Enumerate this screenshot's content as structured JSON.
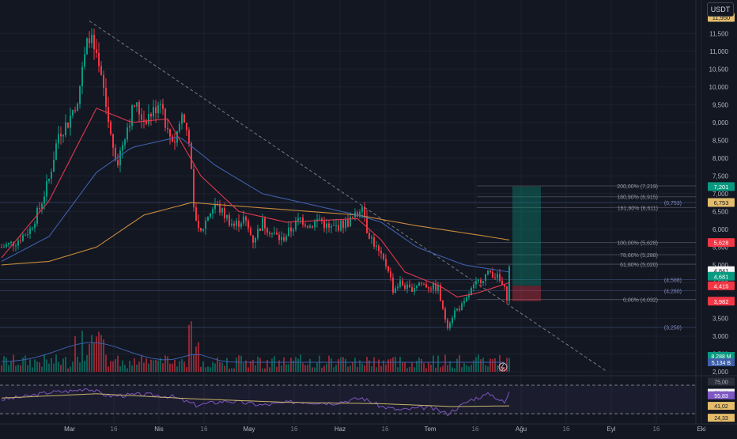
{
  "header": {
    "currency_label": "USDT"
  },
  "colors": {
    "background": "#131722",
    "grid": "#1e222d",
    "up": "#089981",
    "down": "#f23645",
    "ma_fast": "#e0384e",
    "ma_mid": "#3d5fa8",
    "ma_slow": "#c88a3c",
    "rsi_line": "#7e57c2",
    "rsi_ma": "#c8b46a"
  },
  "chart_data": [
    {
      "type": "candlestick",
      "ylim": [
        2000,
        12000
      ],
      "y_ticks": [
        "2,000",
        "2,500",
        "3,000",
        "3,500",
        "4,000",
        "4,500",
        "5,000",
        "5,500",
        "6,000",
        "6,500",
        "7,000",
        "7,500",
        "8,000",
        "8,500",
        "9,000",
        "9,500",
        "10,000",
        "10,500",
        "11,000",
        "11,500"
      ],
      "x_ticks": [
        "Mar",
        "16",
        "Nis",
        "16",
        "May",
        "16",
        "Haz",
        "16",
        "Tem",
        "16",
        "Ağu",
        "16",
        "Eyl",
        "16",
        "Eki"
      ],
      "price_path": [
        {
          "day": 0,
          "price": 5500
        },
        {
          "day": 6,
          "price": 5650
        },
        {
          "day": 12,
          "price": 6000
        },
        {
          "day": 16,
          "price": 6600
        },
        {
          "day": 20,
          "price": 7400
        },
        {
          "day": 24,
          "price": 8700
        },
        {
          "day": 28,
          "price": 9000
        },
        {
          "day": 32,
          "price": 9700
        },
        {
          "day": 35,
          "price": 10800
        },
        {
          "day": 37,
          "price": 11500
        },
        {
          "day": 40,
          "price": 10700
        },
        {
          "day": 43,
          "price": 9900
        },
        {
          "day": 46,
          "price": 8600
        },
        {
          "day": 49,
          "price": 7900
        },
        {
          "day": 52,
          "price": 8700
        },
        {
          "day": 56,
          "price": 9500
        },
        {
          "day": 60,
          "price": 9100
        },
        {
          "day": 64,
          "price": 9300
        },
        {
          "day": 67,
          "price": 9700
        },
        {
          "day": 70,
          "price": 8700
        },
        {
          "day": 73,
          "price": 8500
        },
        {
          "day": 76,
          "price": 9200
        },
        {
          "day": 79,
          "price": 8600
        },
        {
          "day": 81,
          "price": 6500
        },
        {
          "day": 84,
          "price": 5900
        },
        {
          "day": 87,
          "price": 6400
        },
        {
          "day": 90,
          "price": 6700
        },
        {
          "day": 94,
          "price": 6400
        },
        {
          "day": 98,
          "price": 6100
        },
        {
          "day": 102,
          "price": 6300
        },
        {
          "day": 106,
          "price": 5700
        },
        {
          "day": 110,
          "price": 6200
        },
        {
          "day": 114,
          "price": 5900
        },
        {
          "day": 118,
          "price": 5700
        },
        {
          "day": 122,
          "price": 6000
        },
        {
          "day": 126,
          "price": 6300
        },
        {
          "day": 130,
          "price": 6100
        },
        {
          "day": 134,
          "price": 6300
        },
        {
          "day": 138,
          "price": 6000
        },
        {
          "day": 142,
          "price": 6100
        },
        {
          "day": 146,
          "price": 6200
        },
        {
          "day": 150,
          "price": 6400
        },
        {
          "day": 152,
          "price": 6800
        },
        {
          "day": 154,
          "price": 6000
        },
        {
          "day": 157,
          "price": 5600
        },
        {
          "day": 160,
          "price": 5200
        },
        {
          "day": 163,
          "price": 4900
        },
        {
          "day": 165,
          "price": 4300
        },
        {
          "day": 168,
          "price": 4500
        },
        {
          "day": 172,
          "price": 4300
        },
        {
          "day": 176,
          "price": 4500
        },
        {
          "day": 180,
          "price": 4400
        },
        {
          "day": 184,
          "price": 4350
        },
        {
          "day": 186,
          "price": 3700
        },
        {
          "day": 188,
          "price": 3300
        },
        {
          "day": 191,
          "price": 3700
        },
        {
          "day": 195,
          "price": 3900
        },
        {
          "day": 198,
          "price": 4300
        },
        {
          "day": 202,
          "price": 4600
        },
        {
          "day": 206,
          "price": 4800
        },
        {
          "day": 209,
          "price": 4650
        },
        {
          "day": 212,
          "price": 4300
        },
        {
          "day": 213,
          "price": 4100
        },
        {
          "day": 214,
          "price": 4900
        }
      ],
      "moving_averages": {
        "fast": [
          {
            "day": 0,
            "price": 5200
          },
          {
            "day": 20,
            "price": 6800
          },
          {
            "day": 40,
            "price": 9400
          },
          {
            "day": 55,
            "price": 9000
          },
          {
            "day": 70,
            "price": 9100
          },
          {
            "day": 84,
            "price": 7500
          },
          {
            "day": 100,
            "price": 6500
          },
          {
            "day": 120,
            "price": 6200
          },
          {
            "day": 150,
            "price": 6300
          },
          {
            "day": 160,
            "price": 5700
          },
          {
            "day": 170,
            "price": 4800
          },
          {
            "day": 185,
            "price": 4400
          },
          {
            "day": 192,
            "price": 4100
          },
          {
            "day": 200,
            "price": 4200
          },
          {
            "day": 214,
            "price": 4500
          }
        ],
        "mid": [
          {
            "day": 0,
            "price": 5100
          },
          {
            "day": 20,
            "price": 5800
          },
          {
            "day": 40,
            "price": 7600
          },
          {
            "day": 55,
            "price": 8300
          },
          {
            "day": 75,
            "price": 8600
          },
          {
            "day": 90,
            "price": 7800
          },
          {
            "day": 110,
            "price": 7000
          },
          {
            "day": 130,
            "price": 6700
          },
          {
            "day": 150,
            "price": 6400
          },
          {
            "day": 160,
            "price": 6200
          },
          {
            "day": 175,
            "price": 5500
          },
          {
            "day": 195,
            "price": 5000
          },
          {
            "day": 214,
            "price": 4800
          }
        ],
        "slow": [
          {
            "day": 0,
            "price": 5000
          },
          {
            "day": 20,
            "price": 5100
          },
          {
            "day": 40,
            "price": 5500
          },
          {
            "day": 60,
            "price": 6400
          },
          {
            "day": 80,
            "price": 6750
          },
          {
            "day": 110,
            "price": 6600
          },
          {
            "day": 150,
            "price": 6400
          },
          {
            "day": 175,
            "price": 6100
          },
          {
            "day": 200,
            "price": 5850
          },
          {
            "day": 214,
            "price": 5700
          }
        ]
      },
      "trendline_label": "",
      "fib_levels": [
        {
          "label": "200,00% (7,219)",
          "price": 7219
        },
        {
          "label": "180,90% (6,915)",
          "price": 6915
        },
        {
          "label": "161,80% (6,611)",
          "price": 6611
        },
        {
          "label": "100,00% (5,628)",
          "price": 5628
        },
        {
          "label": "78,60% (5,288)",
          "price": 5288
        },
        {
          "label": "61,80% (5,020)",
          "price": 5020
        },
        {
          "label": "0,00% (4,032)",
          "price": 4032
        }
      ],
      "horizontal_levels": [
        {
          "label": "(6,753)",
          "price": 6753
        },
        {
          "label": "(4,588)",
          "price": 4588
        },
        {
          "label": "(4,280)",
          "price": 4280
        },
        {
          "label": "(3,250)",
          "price": 3250
        }
      ],
      "position": {
        "entry": 4415,
        "target": 7201,
        "stop": 3982
      },
      "price_tags": [
        {
          "label": "11,950",
          "price": 11950,
          "color": "#e4bc6a",
          "text_color": "#131722"
        },
        {
          "label": "7,201",
          "price": 7201,
          "color": "#089981",
          "text_color": "#ffffff"
        },
        {
          "label": "6,753",
          "price": 6753,
          "color": "#e4bc6a",
          "text_color": "#131722"
        },
        {
          "label": "5,628",
          "price": 5628,
          "color": "#f23645",
          "text_color": "#ffffff"
        },
        {
          "label": "4,841",
          "price": 4841,
          "color": "#f5f5f5",
          "text_color": "#131722"
        },
        {
          "label": "4,681",
          "price": 4681,
          "color": "#089981",
          "text_color": "#ffffff"
        },
        {
          "label": "4,415",
          "price": 4415,
          "color": "#f23645",
          "text_color": "#ffffff"
        },
        {
          "label": "3,982",
          "price": 3982,
          "color": "#f23645",
          "text_color": "#ffffff"
        }
      ],
      "volume_tags": [
        {
          "label": "8,288 M",
          "color": "#089981"
        },
        {
          "label": "5,134 B",
          "color": "#3d5fa8"
        }
      ]
    },
    {
      "type": "line",
      "name": "RSI",
      "ylim": [
        20,
        80
      ],
      "bands": [
        70,
        30
      ],
      "values_tags": [
        {
          "label": "75,00",
          "value": 75,
          "color": "#2a2e39",
          "text_color": "#b2b5be"
        },
        {
          "label": "59,40",
          "value": 59.4,
          "color": "#f5f5f5",
          "text_color": "#131722"
        },
        {
          "label": "55,83",
          "value": 55.83,
          "color": "#7e57c2",
          "text_color": "#ffffff"
        },
        {
          "label": "41,02",
          "value": 41.02,
          "color": "#e4bc6a",
          "text_color": "#131722"
        },
        {
          "label": "24,33",
          "value": 24.33,
          "color": "#e4bc6a",
          "text_color": "#131722"
        }
      ],
      "rsi_path": [
        {
          "day": 0,
          "value": 50
        },
        {
          "day": 10,
          "value": 54
        },
        {
          "day": 20,
          "value": 60
        },
        {
          "day": 30,
          "value": 62
        },
        {
          "day": 36,
          "value": 66
        },
        {
          "day": 45,
          "value": 55
        },
        {
          "day": 60,
          "value": 57
        },
        {
          "day": 72,
          "value": 54
        },
        {
          "day": 82,
          "value": 42
        },
        {
          "day": 95,
          "value": 48
        },
        {
          "day": 110,
          "value": 42
        },
        {
          "day": 125,
          "value": 47
        },
        {
          "day": 140,
          "value": 45
        },
        {
          "day": 152,
          "value": 52
        },
        {
          "day": 160,
          "value": 40
        },
        {
          "day": 168,
          "value": 35
        },
        {
          "day": 180,
          "value": 39
        },
        {
          "day": 188,
          "value": 30
        },
        {
          "day": 198,
          "value": 50
        },
        {
          "day": 206,
          "value": 58
        },
        {
          "day": 212,
          "value": 45
        },
        {
          "day": 214,
          "value": 59.4
        }
      ],
      "rsi_ma_path": [
        {
          "day": 0,
          "value": 52
        },
        {
          "day": 40,
          "value": 58
        },
        {
          "day": 80,
          "value": 51
        },
        {
          "day": 120,
          "value": 46
        },
        {
          "day": 160,
          "value": 44
        },
        {
          "day": 190,
          "value": 40
        },
        {
          "day": 214,
          "value": 41
        }
      ]
    }
  ]
}
